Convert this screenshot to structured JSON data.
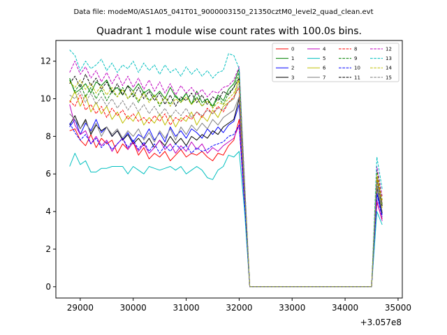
{
  "chart_data": {
    "type": "line",
    "suptitle": "Data file: modeM0/AS1A05_041T01_9000003150_21350cztM0_level2_quad_clean.evt",
    "title": "Quadrant 1 module wise count rates with 100.0s bins.",
    "xlabel": "",
    "ylabel": "",
    "x_offset_label": "+3.057e8",
    "xlim": [
      28540,
      35080
    ],
    "ylim": [
      -0.6,
      13.1
    ],
    "x_ticks": [
      29000,
      30000,
      31000,
      32000,
      33000,
      34000,
      35000
    ],
    "x_tick_labels": [
      "29000",
      "30000",
      "31000",
      "32000",
      "33000",
      "34000",
      "35000"
    ],
    "y_ticks": [
      0,
      2,
      4,
      6,
      8,
      10,
      12
    ],
    "y_tick_labels": [
      "0",
      "2",
      "4",
      "6",
      "8",
      "10",
      "12"
    ],
    "grid": false,
    "legend_position": "top-right",
    "legend_columns": 4,
    "x": [
      28800,
      28900,
      29000,
      29100,
      29200,
      29300,
      29400,
      29500,
      29600,
      29700,
      29800,
      29900,
      30000,
      30100,
      30200,
      30300,
      30400,
      30500,
      30600,
      30700,
      30800,
      30900,
      31000,
      31100,
      31200,
      31300,
      31400,
      31500,
      31600,
      31700,
      31800,
      31900,
      32000,
      32100,
      32200,
      32300,
      32400,
      32500,
      32600,
      32700,
      32800,
      32900,
      33000,
      33100,
      33200,
      33300,
      33400,
      33500,
      33600,
      33700,
      33800,
      33900,
      34000,
      34100,
      34200,
      34300,
      34400,
      34500,
      34600,
      34700
    ],
    "series": [
      {
        "name": "0",
        "color": "#ff0000",
        "dash": "solid",
        "values": [
          8.3,
          8.4,
          7.8,
          7.5,
          8.1,
          7.4,
          7.9,
          7.6,
          7.8,
          7.1,
          7.6,
          7.3,
          7.7,
          7.0,
          7.4,
          6.8,
          7.1,
          6.9,
          7.2,
          6.7,
          7.0,
          7.3,
          6.9,
          7.1,
          7.0,
          7.2,
          6.9,
          6.7,
          7.1,
          7.0,
          7.5,
          7.8,
          8.9,
          4.5,
          0,
          0,
          0,
          0,
          0,
          0,
          0,
          0,
          0,
          0,
          0,
          0,
          0,
          0,
          0,
          0,
          0,
          0,
          0,
          0,
          0,
          0,
          0,
          0,
          4.5,
          3.6
        ]
      },
      {
        "name": "1",
        "color": "#008000",
        "dash": "solid",
        "values": [
          11.1,
          10.3,
          10.5,
          10.8,
          10.3,
          10.9,
          10.7,
          11.0,
          10.4,
          10.6,
          10.2,
          10.7,
          10.4,
          10.8,
          10.3,
          10.5,
          10.1,
          10.4,
          10.0,
          10.6,
          10.1,
          9.9,
          10.3,
          9.7,
          10.4,
          9.8,
          10.0,
          9.6,
          10.2,
          9.9,
          10.5,
          10.8,
          11.6,
          5.5,
          0,
          0,
          0,
          0,
          0,
          0,
          0,
          0,
          0,
          0,
          0,
          0,
          0,
          0,
          0,
          0,
          0,
          0,
          0,
          0,
          0,
          0,
          0,
          0,
          5.8,
          4.4
        ]
      },
      {
        "name": "2",
        "color": "#0000ff",
        "dash": "solid",
        "values": [
          8.5,
          8.9,
          8.1,
          8.7,
          8.3,
          8.9,
          8.2,
          8.5,
          8.0,
          8.3,
          7.8,
          8.2,
          7.7,
          8.1,
          7.9,
          8.4,
          7.8,
          8.2,
          7.7,
          8.5,
          8.0,
          8.3,
          7.9,
          8.4,
          8.2,
          7.9,
          8.4,
          8.1,
          8.5,
          8.2,
          8.6,
          8.8,
          9.7,
          5.0,
          0,
          0,
          0,
          0,
          0,
          0,
          0,
          0,
          0,
          0,
          0,
          0,
          0,
          0,
          0,
          0,
          0,
          0,
          0,
          0,
          0,
          0,
          0,
          0,
          5.0,
          3.8
        ]
      },
      {
        "name": "3",
        "color": "#000000",
        "dash": "solid",
        "values": [
          8.6,
          9.1,
          8.4,
          8.9,
          8.1,
          8.6,
          8.3,
          8.5,
          8.0,
          8.3,
          7.8,
          8.1,
          7.6,
          7.9,
          7.5,
          7.9,
          7.4,
          7.8,
          7.5,
          8.0,
          7.6,
          7.9,
          7.5,
          8.0,
          7.8,
          8.1,
          7.9,
          8.3,
          8.1,
          8.5,
          8.7,
          8.9,
          10.0,
          5.1,
          0,
          0,
          0,
          0,
          0,
          0,
          0,
          0,
          0,
          0,
          0,
          0,
          0,
          0,
          0,
          0,
          0,
          0,
          0,
          0,
          0,
          0,
          0,
          0,
          5.3,
          3.9
        ]
      },
      {
        "name": "4",
        "color": "#bf00bf",
        "dash": "solid",
        "values": [
          9.7,
          8.6,
          8.1,
          8.3,
          7.6,
          8.0,
          7.5,
          7.8,
          7.2,
          7.6,
          7.9,
          7.3,
          7.7,
          7.2,
          7.6,
          7.1,
          7.4,
          7.8,
          7.3,
          7.6,
          7.1,
          7.5,
          7.2,
          7.7,
          7.3,
          7.6,
          7.1,
          7.4,
          7.2,
          7.5,
          7.7,
          7.9,
          8.6,
          4.4,
          0,
          0,
          0,
          0,
          0,
          0,
          0,
          0,
          0,
          0,
          0,
          0,
          0,
          0,
          0,
          0,
          0,
          0,
          0,
          0,
          0,
          0,
          0,
          0,
          4.6,
          3.5
        ]
      },
      {
        "name": "5",
        "color": "#00bfbf",
        "dash": "solid",
        "values": [
          6.4,
          7.1,
          6.5,
          6.7,
          6.1,
          6.1,
          6.3,
          6.3,
          6.4,
          6.4,
          6.4,
          6.0,
          6.4,
          6.2,
          6.0,
          6.4,
          6.3,
          6.2,
          6.3,
          6.4,
          6.2,
          6.4,
          6.0,
          6.2,
          6.4,
          6.2,
          5.8,
          5.7,
          6.2,
          6.4,
          7.0,
          6.9,
          7.2,
          4.1,
          0,
          0,
          0,
          0,
          0,
          0,
          0,
          0,
          0,
          0,
          0,
          0,
          0,
          0,
          0,
          0,
          0,
          0,
          0,
          0,
          0,
          0,
          0,
          0,
          4.0,
          3.3
        ]
      },
      {
        "name": "6",
        "color": "#bfbf00",
        "dash": "solid",
        "values": [
          9.8,
          10.4,
          9.6,
          10.2,
          9.3,
          9.8,
          9.2,
          9.6,
          8.9,
          9.3,
          8.7,
          9.1,
          8.8,
          9.3,
          8.6,
          9.0,
          8.7,
          9.2,
          8.6,
          9.1,
          8.5,
          9.0,
          8.8,
          9.3,
          8.6,
          9.1,
          8.8,
          9.4,
          9.0,
          9.6,
          9.8,
          10.0,
          11.2,
          5.4,
          0,
          0,
          0,
          0,
          0,
          0,
          0,
          0,
          0,
          0,
          0,
          0,
          0,
          0,
          0,
          0,
          0,
          0,
          0,
          0,
          0,
          0,
          0,
          0,
          5.7,
          4.2
        ]
      },
      {
        "name": "7",
        "color": "#808080",
        "dash": "solid",
        "values": [
          9.2,
          8.9,
          8.4,
          8.8,
          8.2,
          8.7,
          8.0,
          8.5,
          8.1,
          8.4,
          7.9,
          8.3,
          8.0,
          8.4,
          7.8,
          8.2,
          7.7,
          8.3,
          7.9,
          8.4,
          7.8,
          8.5,
          8.1,
          8.6,
          8.3,
          8.7,
          8.4,
          8.9,
          8.6,
          9.0,
          9.2,
          9.4,
          10.1,
          5.0,
          0,
          0,
          0,
          0,
          0,
          0,
          0,
          0,
          0,
          0,
          0,
          0,
          0,
          0,
          0,
          0,
          0,
          0,
          0,
          0,
          0,
          0,
          0,
          0,
          5.4,
          4.0
        ]
      },
      {
        "name": "8",
        "color": "#ff0000",
        "dash": "dashed",
        "values": [
          9.9,
          9.6,
          10.2,
          9.4,
          9.7,
          9.2,
          9.6,
          9.0,
          9.5,
          9.1,
          9.4,
          8.9,
          9.2,
          8.8,
          9.0,
          8.7,
          9.1,
          8.8,
          9.2,
          8.6,
          9.0,
          8.8,
          9.1,
          8.9,
          9.3,
          9.0,
          9.5,
          9.2,
          9.6,
          9.3,
          9.8,
          10.1,
          10.6,
          5.3,
          0,
          0,
          0,
          0,
          0,
          0,
          0,
          0,
          0,
          0,
          0,
          0,
          0,
          0,
          0,
          0,
          0,
          0,
          0,
          0,
          0,
          0,
          0,
          0,
          5.9,
          4.5
        ]
      },
      {
        "name": "9",
        "color": "#008000",
        "dash": "dashed",
        "values": [
          11.0,
          10.4,
          10.8,
          10.1,
          10.6,
          10.0,
          10.5,
          9.9,
          10.4,
          10.1,
          10.6,
          10.0,
          10.3,
          9.8,
          10.4,
          9.9,
          10.2,
          9.6,
          10.1,
          9.7,
          10.2,
          9.8,
          10.3,
          9.7,
          10.1,
          9.6,
          10.0,
          9.5,
          10.1,
          9.7,
          10.3,
          10.6,
          11.4,
          5.6,
          0,
          0,
          0,
          0,
          0,
          0,
          0,
          0,
          0,
          0,
          0,
          0,
          0,
          0,
          0,
          0,
          0,
          0,
          0,
          0,
          0,
          0,
          0,
          0,
          6.2,
          4.6
        ]
      },
      {
        "name": "10",
        "color": "#0000ff",
        "dash": "dashed",
        "values": [
          8.7,
          8.2,
          7.8,
          8.1,
          7.6,
          7.9,
          7.4,
          7.7,
          7.3,
          7.6,
          7.9,
          7.4,
          7.8,
          7.3,
          7.7,
          7.2,
          7.6,
          7.1,
          7.5,
          7.2,
          7.6,
          7.3,
          7.5,
          7.1,
          7.4,
          7.2,
          7.3,
          7.5,
          7.6,
          7.7,
          8.0,
          8.1,
          8.6,
          4.6,
          0,
          0,
          0,
          0,
          0,
          0,
          0,
          0,
          0,
          0,
          0,
          0,
          0,
          0,
          0,
          0,
          0,
          0,
          0,
          0,
          0,
          0,
          0,
          0,
          4.9,
          3.7
        ]
      },
      {
        "name": "11",
        "color": "#000000",
        "dash": "dashed",
        "values": [
          10.8,
          11.2,
          10.6,
          11.3,
          10.7,
          11.1,
          10.5,
          10.9,
          10.3,
          10.8,
          10.2,
          10.7,
          10.1,
          10.6,
          10.0,
          10.4,
          9.9,
          10.3,
          9.7,
          10.2,
          9.6,
          10.1,
          9.9,
          10.3,
          9.8,
          10.2,
          9.7,
          10.1,
          9.9,
          10.4,
          10.2,
          10.6,
          11.1,
          5.4,
          0,
          0,
          0,
          0,
          0,
          0,
          0,
          0,
          0,
          0,
          0,
          0,
          0,
          0,
          0,
          0,
          0,
          0,
          0,
          0,
          0,
          0,
          0,
          0,
          5.6,
          4.3
        ]
      },
      {
        "name": "12",
        "color": "#bf00bf",
        "dash": "dashed",
        "values": [
          11.4,
          12.0,
          11.3,
          11.7,
          11.1,
          11.5,
          10.9,
          11.4,
          10.8,
          11.3,
          10.7,
          11.2,
          10.6,
          11.1,
          10.5,
          11.0,
          10.4,
          10.9,
          10.3,
          10.8,
          10.2,
          10.7,
          10.3,
          10.6,
          10.2,
          10.5,
          10.1,
          10.4,
          10.3,
          10.6,
          10.7,
          11.0,
          11.7,
          5.8,
          0,
          0,
          0,
          0,
          0,
          0,
          0,
          0,
          0,
          0,
          0,
          0,
          0,
          0,
          0,
          0,
          0,
          0,
          0,
          0,
          0,
          0,
          0,
          0,
          6.4,
          4.8
        ]
      },
      {
        "name": "13",
        "color": "#00bfbf",
        "dash": "dashed",
        "values": [
          12.6,
          12.3,
          11.5,
          12.0,
          11.6,
          11.8,
          12.1,
          11.5,
          11.9,
          11.4,
          11.8,
          11.6,
          12.0,
          11.4,
          11.9,
          11.5,
          11.8,
          11.3,
          11.8,
          11.4,
          11.6,
          11.2,
          11.7,
          11.3,
          11.6,
          11.2,
          11.5,
          11.1,
          11.4,
          11.5,
          12.4,
          12.3,
          11.6,
          5.6,
          0,
          0,
          0,
          0,
          0,
          0,
          0,
          0,
          0,
          0,
          0,
          0,
          0,
          0,
          0,
          0,
          0,
          0,
          0,
          0,
          0,
          0,
          0,
          0,
          6.9,
          5.2
        ]
      },
      {
        "name": "14",
        "color": "#bfbf00",
        "dash": "dashed",
        "values": [
          10.9,
          10.6,
          11.0,
          10.5,
          10.8,
          10.3,
          10.7,
          10.2,
          10.6,
          10.1,
          10.5,
          10.0,
          10.4,
          9.9,
          10.3,
          9.8,
          10.2,
          9.7,
          10.1,
          9.6,
          10.0,
          9.8,
          10.1,
          9.7,
          10.0,
          9.6,
          9.9,
          9.5,
          9.8,
          9.7,
          10.0,
          10.3,
          11.0,
          5.4,
          0,
          0,
          0,
          0,
          0,
          0,
          0,
          0,
          0,
          0,
          0,
          0,
          0,
          0,
          0,
          0,
          0,
          0,
          0,
          0,
          0,
          0,
          0,
          0,
          6.0,
          4.6
        ]
      },
      {
        "name": "15",
        "color": "#808080",
        "dash": "dashed",
        "values": [
          10.2,
          10.0,
          10.4,
          9.8,
          10.3,
          9.7,
          10.1,
          9.6,
          10.0,
          9.5,
          9.9,
          9.4,
          9.8,
          9.3,
          9.7,
          9.2,
          9.6,
          9.1,
          9.5,
          9.0,
          9.4,
          9.1,
          9.5,
          9.0,
          9.3,
          9.1,
          9.4,
          9.2,
          9.5,
          9.4,
          9.8,
          10.0,
          10.8,
          5.3,
          0,
          0,
          0,
          0,
          0,
          0,
          0,
          0,
          0,
          0,
          0,
          0,
          0,
          0,
          0,
          0,
          0,
          0,
          0,
          0,
          0,
          0,
          0,
          0,
          5.6,
          4.4
        ]
      }
    ]
  }
}
